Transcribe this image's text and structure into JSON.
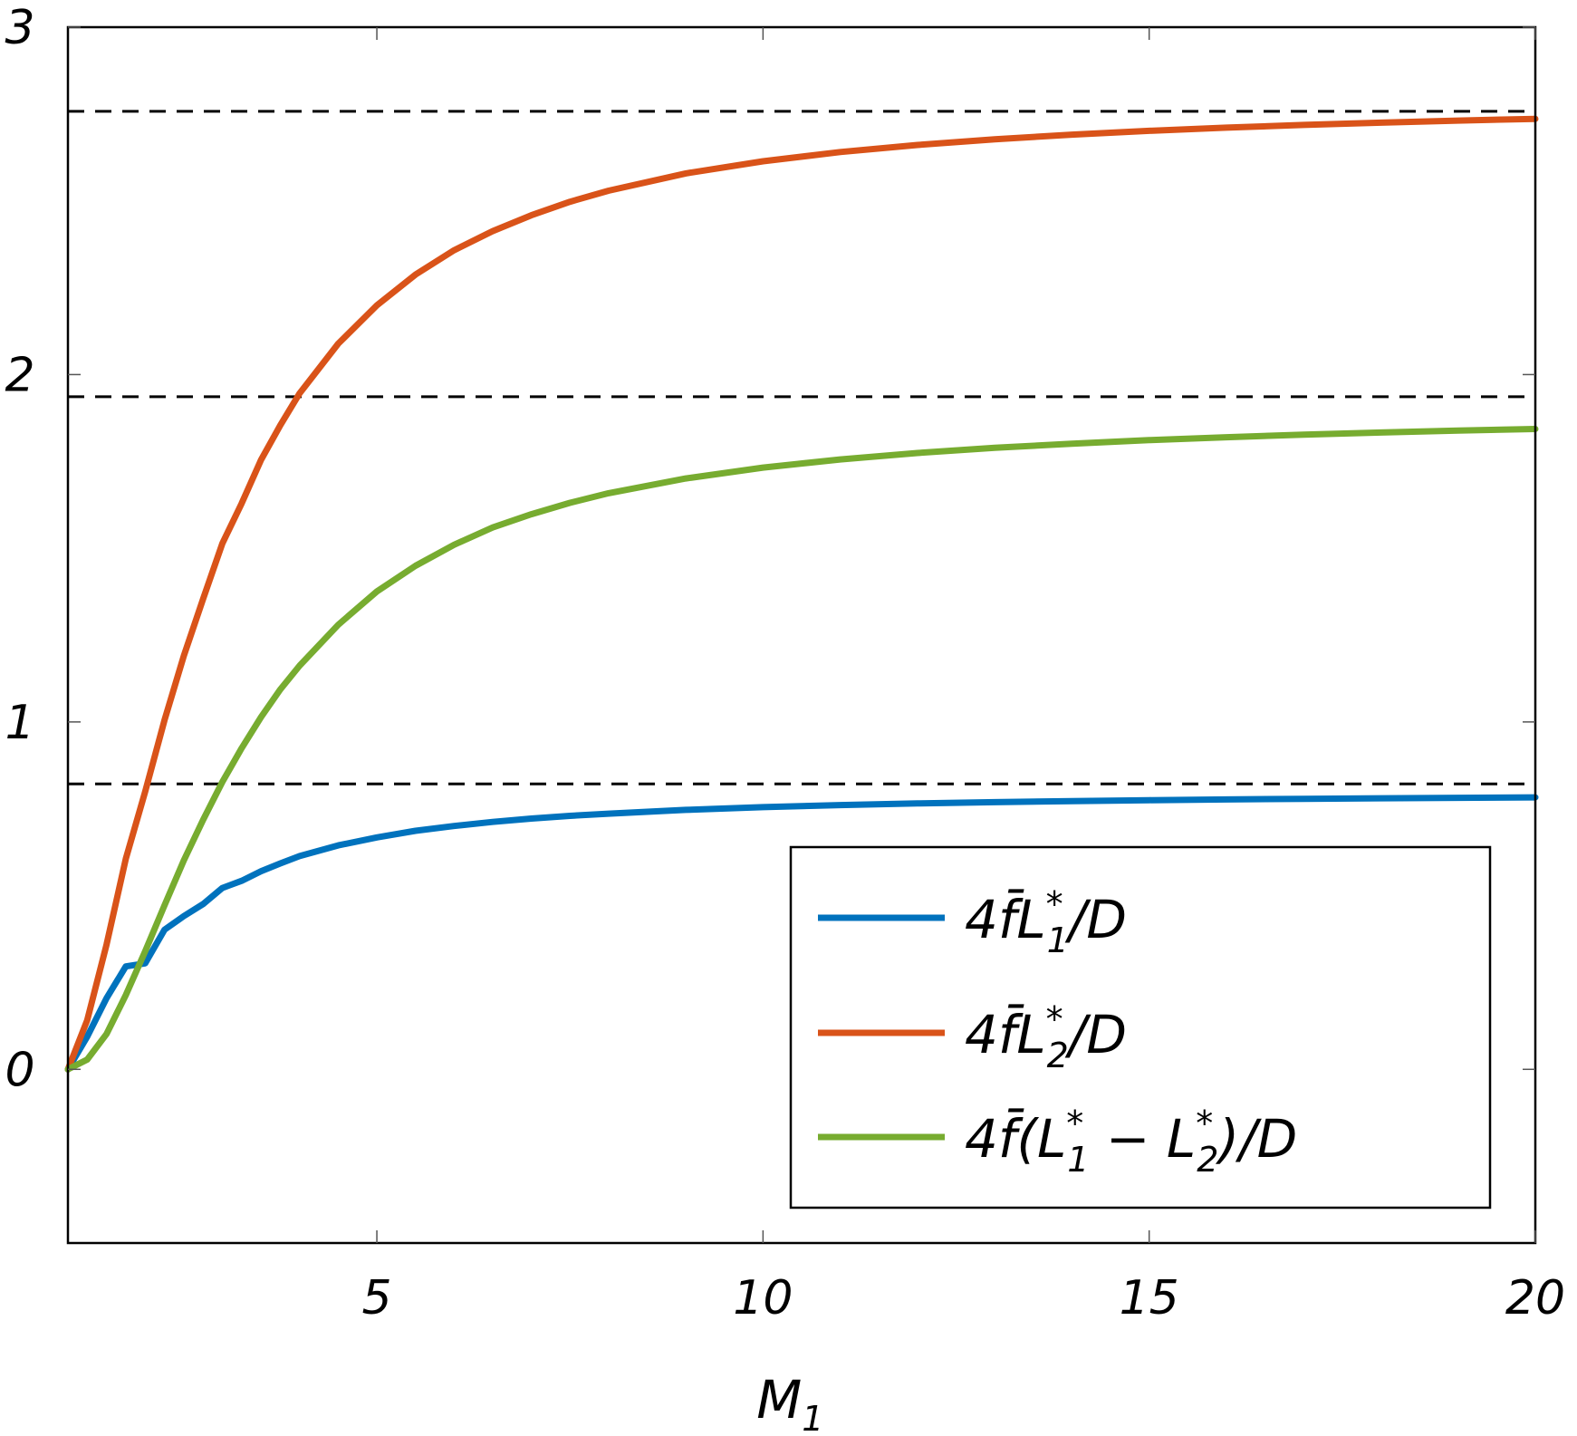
{
  "chart_data": {
    "type": "line",
    "xlabel": "M",
    "xlabel_sub": "1",
    "xlim": [
      1,
      20
    ],
    "ylim": [
      -0.5,
      3
    ],
    "xticks": [
      5,
      10,
      15,
      20
    ],
    "yticks": [
      0,
      1,
      2,
      3
    ],
    "grid": false,
    "legend_position": "bottom-right",
    "reference_lines": [
      0.8215,
      1.9363,
      2.7578
    ],
    "x": [
      1,
      1.25,
      1.5,
      1.75,
      2,
      2.25,
      2.5,
      2.75,
      3,
      3.25,
      3.5,
      3.75,
      4,
      4.5,
      5,
      5.5,
      6,
      6.5,
      7,
      7.5,
      8,
      9,
      10,
      11,
      12,
      13,
      14,
      15,
      16,
      17,
      18,
      19,
      20
    ],
    "series": [
      {
        "legend_main": "4f̄L",
        "legend_sup": "*",
        "legend_sub": "1",
        "legend_tail": "/D",
        "color": "#0072BD",
        "values": [
          0,
          0.0941,
          0.2046,
          0.2963,
          0.305,
          0.4019,
          0.441,
          0.4756,
          0.5222,
          0.5427,
          0.5704,
          0.5927,
          0.6138,
          0.6447,
          0.6676,
          0.6866,
          0.7004,
          0.7122,
          0.7218,
          0.7297,
          0.736,
          0.7468,
          0.7548,
          0.7606,
          0.7653,
          0.7691,
          0.7721,
          0.7747,
          0.7768,
          0.7787,
          0.7803,
          0.7816,
          0.7829
        ]
      },
      {
        "legend_main": "4f̄L",
        "legend_sup": "*",
        "legend_sub": "2",
        "legend_tail": "/D",
        "color": "#D95319",
        "values": [
          0,
          0.1416,
          0.3588,
          0.606,
          0.7997,
          1.005,
          1.1901,
          1.354,
          1.514,
          1.6291,
          1.7544,
          1.8542,
          1.9461,
          2.0889,
          2.1992,
          2.2878,
          2.3578,
          2.4128,
          2.4585,
          2.4973,
          2.5292,
          2.579,
          2.6139,
          2.6405,
          2.661,
          2.6774,
          2.6906,
          2.7016,
          2.7108,
          2.7185,
          2.7252,
          2.731,
          2.7361
        ]
      },
      {
        "legend_main": "4f̄(L",
        "legend_sup": "*",
        "legend_sub": "1",
        "legend_mid": " − L",
        "legend_sup2": "*",
        "legend_sub2": "2",
        "legend_tail": ")/D",
        "color": "#77AC30",
        "values": [
          0,
          0.028,
          0.1018,
          0.2139,
          0.34,
          0.472,
          0.6014,
          0.718,
          0.8276,
          0.9246,
          1.014,
          1.0938,
          1.162,
          1.2797,
          1.3757,
          1.4495,
          1.51,
          1.5598,
          1.5979,
          1.6309,
          1.6585,
          1.7009,
          1.7321,
          1.7557,
          1.7742,
          1.789,
          1.8011,
          1.8112,
          1.8197,
          1.8269,
          1.8331,
          1.8386,
          1.8433
        ]
      }
    ]
  }
}
